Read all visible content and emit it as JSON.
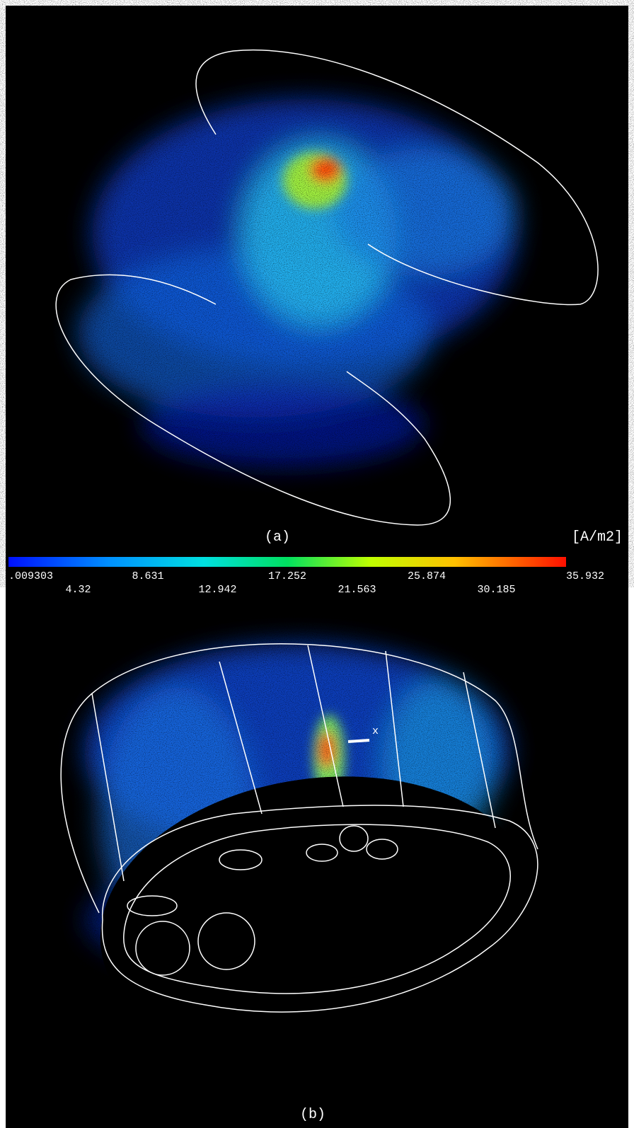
{
  "panels": [
    {
      "label": "(a)"
    },
    {
      "label": "(b)",
      "axis_label": "x"
    }
  ],
  "colorbar": {
    "unit": "[A/m2]",
    "upper_labels": [
      ".009303",
      "8.631",
      "17.252",
      "25.874",
      "35.932"
    ],
    "lower_labels": [
      "4.32",
      "12.942",
      "21.563",
      "30.185"
    ]
  }
}
